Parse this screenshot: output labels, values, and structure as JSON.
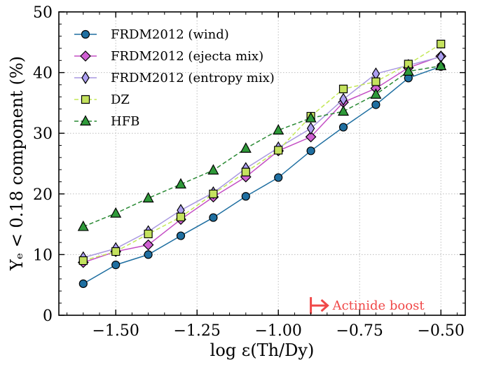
{
  "chart_data": {
    "type": "line",
    "xlabel": "log ε(Th/Dy)",
    "ylabel": "Yₑ < 0.18 component (%)",
    "xlim": [
      -1.675,
      -0.425
    ],
    "ylim": [
      0,
      50
    ],
    "xticks": [
      -1.5,
      -1.25,
      -1.0,
      -0.75,
      -0.5
    ],
    "xtick_labels": [
      "−1.50",
      "−1.25",
      "−1.00",
      "−0.75",
      "−0.50"
    ],
    "yticks": [
      0,
      10,
      20,
      30,
      40,
      50
    ],
    "ytick_labels": [
      "0",
      "10",
      "20",
      "30",
      "40",
      "50"
    ],
    "grid": true,
    "legend_position": "top-left",
    "x": [
      -1.6,
      -1.5,
      -1.4,
      -1.3,
      -1.2,
      -1.1,
      -1.0,
      -0.9,
      -0.8,
      -0.7,
      -0.6,
      -0.5
    ],
    "series": [
      {
        "name": "FRDM2012 (wind)",
        "color": "#1f6fa1",
        "fill": "#1f6fa1",
        "marker": "circle",
        "dash": "solid",
        "values": [
          5.2,
          8.3,
          10.0,
          13.1,
          16.1,
          19.6,
          22.7,
          27.1,
          31.0,
          34.7,
          39.1,
          41.0
        ]
      },
      {
        "name": "FRDM2012 (ejecta mix)",
        "color": "#c44ec4",
        "fill": "#cf5fd2",
        "marker": "diamond",
        "dash": "solid",
        "values": [
          8.7,
          10.5,
          11.6,
          15.8,
          19.5,
          22.8,
          27.1,
          29.4,
          35.1,
          37.4,
          40.8,
          42.7
        ]
      },
      {
        "name": "FRDM2012 (entropy mix)",
        "color": "#a998e0",
        "fill": "#ab9ef0",
        "marker": "thin_diamond",
        "dash": "solid",
        "values": [
          9.5,
          11.0,
          13.8,
          17.3,
          20.2,
          24.2,
          27.6,
          30.8,
          35.6,
          39.8,
          41.2,
          42.6
        ]
      },
      {
        "name": "DZ",
        "color": "#c3e856",
        "fill": "#c4e25e",
        "marker": "square",
        "dash": "dashed",
        "values": [
          9.0,
          10.5,
          13.4,
          16.2,
          20.0,
          23.6,
          27.2,
          32.8,
          37.3,
          38.5,
          41.4,
          44.7
        ]
      },
      {
        "name": "HFB",
        "color": "#2a8a34",
        "fill": "#2f9a3a",
        "marker": "triangle",
        "dash": "dashed",
        "values": [
          14.6,
          16.8,
          19.3,
          21.6,
          23.9,
          27.5,
          30.5,
          32.5,
          33.6,
          36.4,
          40.2,
          41.1
        ]
      }
    ],
    "annotations": [
      {
        "text": "Actinide boost",
        "x": -0.9,
        "y": 1.6,
        "color": "#f04848",
        "style": "arrow-right"
      }
    ]
  }
}
